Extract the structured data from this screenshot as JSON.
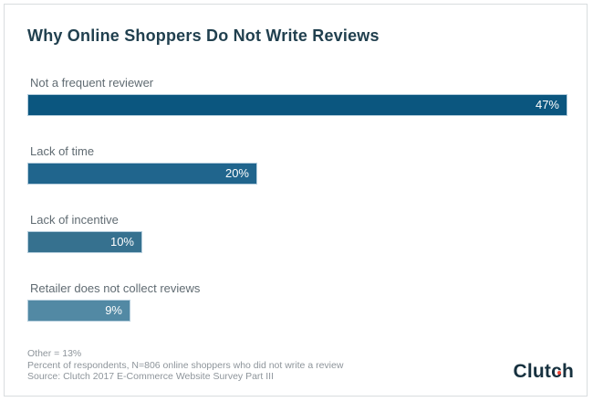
{
  "page": {
    "title": "Why Online Shoppers Do Not Write Reviews"
  },
  "chart_data": {
    "type": "bar",
    "orientation": "horizontal",
    "title": "Why Online Shoppers Do Not Write Reviews",
    "categories": [
      "Not a frequent reviewer",
      "Lack of time",
      "Lack of incentive",
      "Retailer does not collect reviews"
    ],
    "values": [
      47,
      20,
      10,
      9
    ],
    "value_labels": [
      "47%",
      "20%",
      "10%",
      "9%"
    ],
    "bar_colors": [
      "#0b567f",
      "#20658d",
      "#36718f",
      "#5289a4"
    ],
    "xlim": [
      0,
      50
    ],
    "grid": false,
    "legend": false,
    "annotations": [
      "Other = 13%",
      "Percent of respondents, N=806 online shoppers who did not write a review",
      "Source: Clutch 2017 E-Commerce Website Survey Part III"
    ]
  },
  "footer": {
    "line1": "Other = 13%",
    "line2": "Percent of respondents, N=806 online shoppers who did not write a review",
    "line3": "Source: Clutch 2017 E-Commerce Website Survey Part III"
  },
  "branding": {
    "logo_text": "Clutch",
    "logo_part_clut": "Clut",
    "logo_part_c": "c",
    "logo_part_h": "h",
    "logo_color": "#17313f",
    "logo_dot_color": "#ef4234"
  }
}
